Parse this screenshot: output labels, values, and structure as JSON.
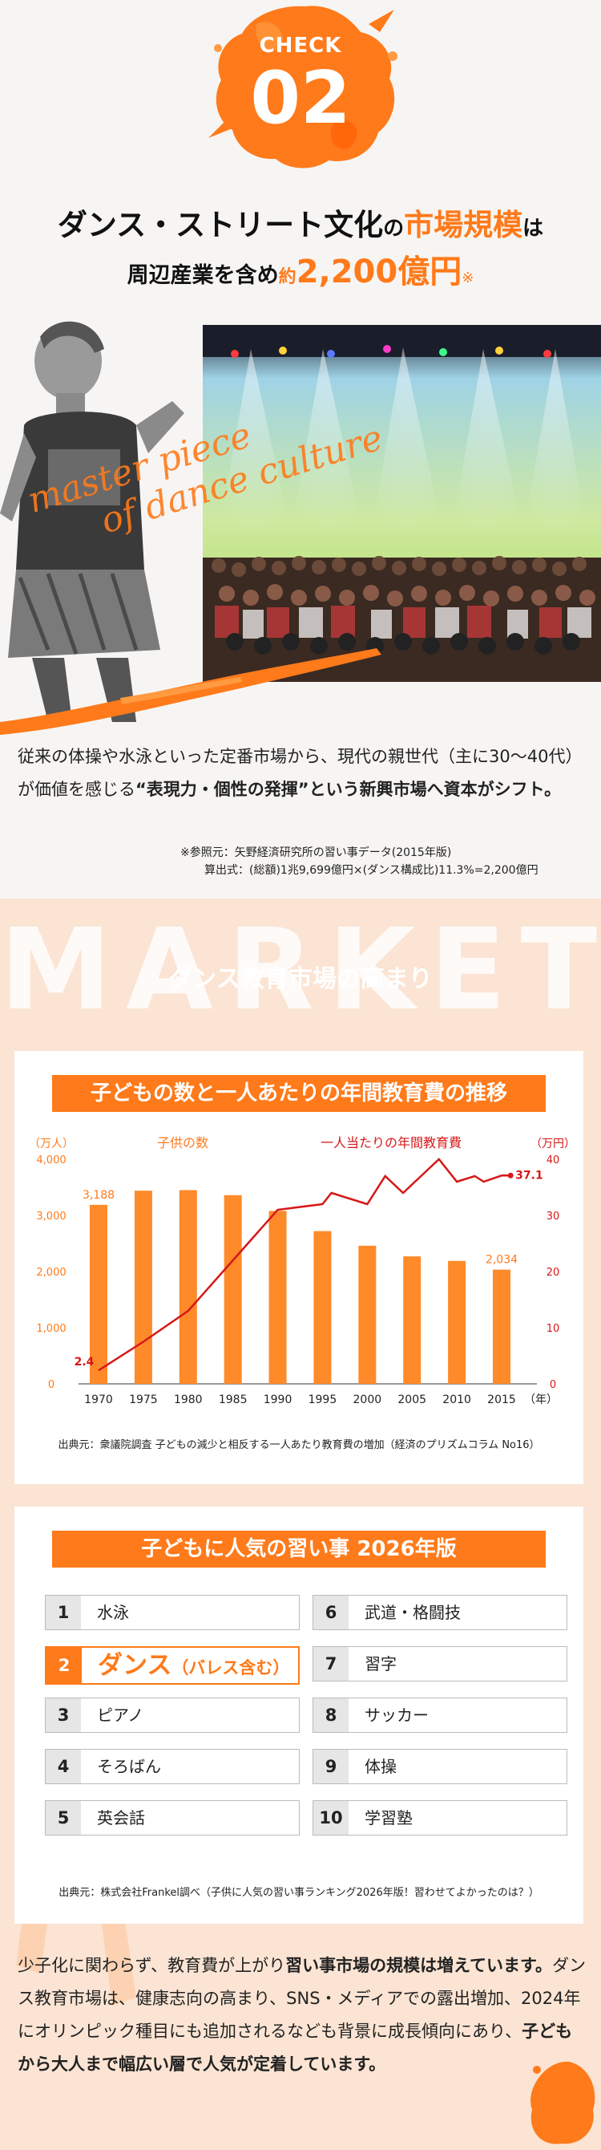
{
  "header": {
    "check_word": "CHECK",
    "check_number": "02",
    "headline_line1_a": "ダンス・ストリート文化",
    "headline_line1_b": "の",
    "headline_line1_highlight": "市場規模",
    "headline_line1_c": "は",
    "headline_line2_a": "周辺産業を含め",
    "headline_line2_small": "約",
    "headline_line2_highlight": "2,200億円",
    "headline_line2_mark": "※"
  },
  "hero": {
    "script_text_line1": "master piece",
    "script_text_line2": "of dance culture"
  },
  "intro": {
    "text_a": "従来の体操や水泳といった定番市場から、現代の親世代（主に30～40代）が価値を感じる",
    "text_bold": "“表現力・個性の発揮”という新興市場へ資本がシフト。",
    "reference_line1": "※参照元：矢野経済研究所の習い事データ(2015年版)",
    "reference_line2": "算出式：(総額)1兆9,699億円×(ダンス構成比)11.3%=2,200億円"
  },
  "market": {
    "bg_word": "MARKET",
    "title": "ダンス教育市場の高まり"
  },
  "chart_card": {
    "title": "子どもの数と一人あたりの年間教育費の推移",
    "source": "出典元：衆議院調査 子どもの減少と相反する一人あたり教育費の増加（経済のプリズムコラム No16）"
  },
  "chart_data": {
    "type": "bar",
    "categories": [
      "1970",
      "1975",
      "1980",
      "1985",
      "1990",
      "1995",
      "2000",
      "2005",
      "2010",
      "2015"
    ],
    "x_unit_label": "（年）",
    "series": [
      {
        "name": "子供の数",
        "type": "bar",
        "axis": "left",
        "color": "#ff8a2a",
        "x": [
          1970,
          1975,
          1980,
          1985,
          1990,
          1995,
          2000,
          2005,
          2010,
          2015
        ],
        "values": [
          3188,
          3440,
          3450,
          3360,
          3080,
          2720,
          2460,
          2270,
          2190,
          2034
        ]
      },
      {
        "name": "一人当たりの年間教育費",
        "type": "line",
        "axis": "right",
        "color": "#d61818",
        "x": [
          1970,
          1975,
          1980,
          1985,
          1990,
          1995,
          1996,
          1998,
          2000,
          2002,
          2004,
          2006,
          2008,
          2010,
          2012,
          2013,
          2015,
          2016
        ],
        "values": [
          2.4,
          7.5,
          13,
          22,
          31,
          32,
          34,
          33,
          32,
          37,
          34,
          37,
          40,
          36,
          37,
          36,
          37.1,
          37.1
        ]
      }
    ],
    "left_axis": {
      "label": "（万人）",
      "ticks": [
        "0",
        "1,000",
        "2,000",
        "3,000",
        "4,000"
      ],
      "ylim": [
        0,
        4000
      ]
    },
    "right_axis": {
      "label": "（万円）",
      "ticks": [
        "0",
        "10",
        "20",
        "30",
        "40"
      ],
      "ylim": [
        0,
        40
      ]
    },
    "data_labels": [
      {
        "series": "子供の数",
        "x": 1970,
        "text": "3,188"
      },
      {
        "series": "子供の数",
        "x": 2015,
        "text": "2,034"
      },
      {
        "series": "一人当たりの年間教育費",
        "x": 1970,
        "text": "2.4"
      },
      {
        "series": "一人当たりの年間教育費",
        "x": 2016,
        "text": "37.1"
      }
    ],
    "grid": false,
    "legend_placement": "top"
  },
  "ranking_card": {
    "title": "子どもに人気の習い事 2026年版",
    "items": [
      {
        "rank": "1",
        "label": "水泳"
      },
      {
        "rank": "2",
        "label": "ダンス",
        "sub": "（バレス含む）"
      },
      {
        "rank": "3",
        "label": "ピアノ"
      },
      {
        "rank": "4",
        "label": "そろばん"
      },
      {
        "rank": "5",
        "label": "英会話"
      },
      {
        "rank": "6",
        "label": "武道・格闘技"
      },
      {
        "rank": "7",
        "label": "習字"
      },
      {
        "rank": "8",
        "label": "サッカー"
      },
      {
        "rank": "9",
        "label": "体操"
      },
      {
        "rank": "10",
        "label": "学習塾"
      }
    ],
    "source": "出典元：株式会社Frankel調べ（子供に人気の習い事ランキング2026年版！習わせてよかったのは？）"
  },
  "closing": {
    "text_a": "少子化に関わらず、教育費が上がり",
    "text_bold1": "習い事市場の規模は増えています。",
    "text_b": "ダンス教育市場は、健康志向の高まり、SNS・メディアでの露出増加、2024年にオリンピック種目にも追加されるなども背景に成長傾向にあり、",
    "text_bold2": "子どもから大人まで幅広い層で人気が定着しています。"
  },
  "colors": {
    "accent": "#ff7a1a",
    "line": "#d61818",
    "band": "#fbe4d3"
  }
}
